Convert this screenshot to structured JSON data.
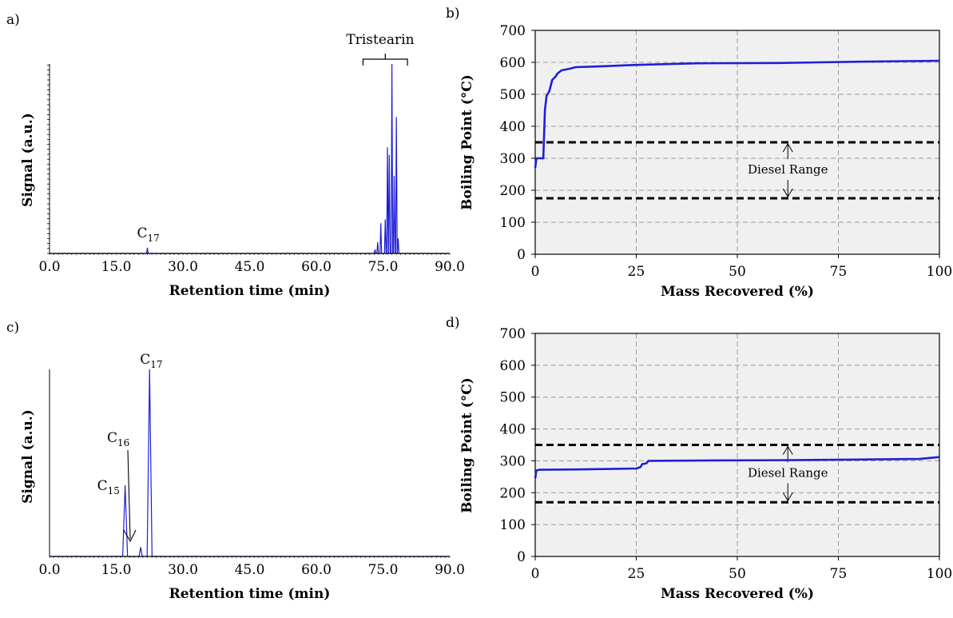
{
  "chart_data": [
    {
      "id": "a",
      "type": "line",
      "panel_label": "a)",
      "xlabel": "Retention time (min)",
      "ylabel": "Signal (a.u.)",
      "xlim": [
        0,
        90
      ],
      "ylim": [
        0,
        1
      ],
      "xticks": [
        "0.0",
        "15.0",
        "30.0",
        "45.0",
        "60.0",
        "75.0",
        "90.0"
      ],
      "color": "#1f1fd6",
      "peaks": [
        {
          "x": 22.0,
          "y": 0.03
        },
        {
          "x": 73.2,
          "y": 0.02
        },
        {
          "x": 73.8,
          "y": 0.06
        },
        {
          "x": 74.5,
          "y": 0.16
        },
        {
          "x": 75.5,
          "y": 0.18
        },
        {
          "x": 76.0,
          "y": 0.56
        },
        {
          "x": 76.4,
          "y": 0.52
        },
        {
          "x": 77.0,
          "y": 1.0
        },
        {
          "x": 77.5,
          "y": 0.41
        },
        {
          "x": 78.0,
          "y": 0.72
        },
        {
          "x": 78.4,
          "y": 0.08
        }
      ],
      "annotations": [
        {
          "text": "C",
          "sub": "17"
        },
        {
          "text": "Tristearin"
        }
      ]
    },
    {
      "id": "b",
      "type": "line",
      "panel_label": "b)",
      "xlabel": "Mass Recovered (%)",
      "ylabel": "Boiling Point (°C)",
      "xlim": [
        0,
        100
      ],
      "ylim": [
        0,
        700
      ],
      "xticks": [
        "0",
        "25",
        "50",
        "75",
        "100"
      ],
      "yticks": [
        "0",
        "100",
        "200",
        "300",
        "400",
        "500",
        "600",
        "700"
      ],
      "series": [
        {
          "color": "#1f1fd6",
          "points": [
            [
              0,
              270
            ],
            [
              0.3,
              300
            ],
            [
              2,
              300
            ],
            [
              2.4,
              450
            ],
            [
              2.8,
              495
            ],
            [
              3.5,
              510
            ],
            [
              4.2,
              545
            ],
            [
              5,
              555
            ],
            [
              5.5,
              565
            ],
            [
              6.5,
              575
            ],
            [
              8.5,
              580
            ],
            [
              10,
              585
            ],
            [
              15,
              587
            ],
            [
              25,
              592
            ],
            [
              40,
              597
            ],
            [
              60,
              598
            ],
            [
              80,
              602
            ],
            [
              100,
              605
            ]
          ]
        }
      ],
      "diesel_range": {
        "label": "Diesel Range",
        "low": 175,
        "high": 350
      }
    },
    {
      "id": "c",
      "type": "line",
      "panel_label": "c)",
      "xlabel": "Retention time (min)",
      "ylabel": "Signal (a.u.)",
      "xlim": [
        0,
        90
      ],
      "ylim": [
        0,
        1
      ],
      "xticks": [
        "0.0",
        "15.0",
        "30.0",
        "45.0",
        "60.0",
        "75.0",
        "90.0"
      ],
      "color": "#1f1fd6",
      "peaks": [
        {
          "x": 17.0,
          "y": 0.38,
          "w": 0.55
        },
        {
          "x": 20.5,
          "y": 0.05,
          "w": 0.35
        },
        {
          "x": 22.5,
          "y": 1.0,
          "w": 0.55
        }
      ],
      "annotations": [
        {
          "text": "C",
          "sub": "15"
        },
        {
          "text": "C",
          "sub": "16"
        },
        {
          "text": "C",
          "sub": "17"
        }
      ]
    },
    {
      "id": "d",
      "type": "line",
      "panel_label": "d)",
      "xlabel": "Mass Recovered (%)",
      "ylabel": "Boiling Point (°C)",
      "xlim": [
        0,
        100
      ],
      "ylim": [
        0,
        700
      ],
      "xticks": [
        "0",
        "25",
        "50",
        "75",
        "100"
      ],
      "yticks": [
        "0",
        "100",
        "200",
        "300",
        "400",
        "500",
        "600",
        "700"
      ],
      "series": [
        {
          "color": "#1f1fd6",
          "points": [
            [
              0,
              245
            ],
            [
              0.3,
              270
            ],
            [
              1,
              272
            ],
            [
              10,
              273
            ],
            [
              25,
              276
            ],
            [
              26,
              280
            ],
            [
              26.5,
              290
            ],
            [
              27.5,
              292
            ],
            [
              28,
              300
            ],
            [
              40,
              301
            ],
            [
              60,
              302
            ],
            [
              80,
              304
            ],
            [
              95,
              306
            ],
            [
              100,
              312
            ]
          ]
        }
      ],
      "diesel_range": {
        "label": "Diesel Range",
        "low": 170,
        "high": 350
      }
    }
  ]
}
